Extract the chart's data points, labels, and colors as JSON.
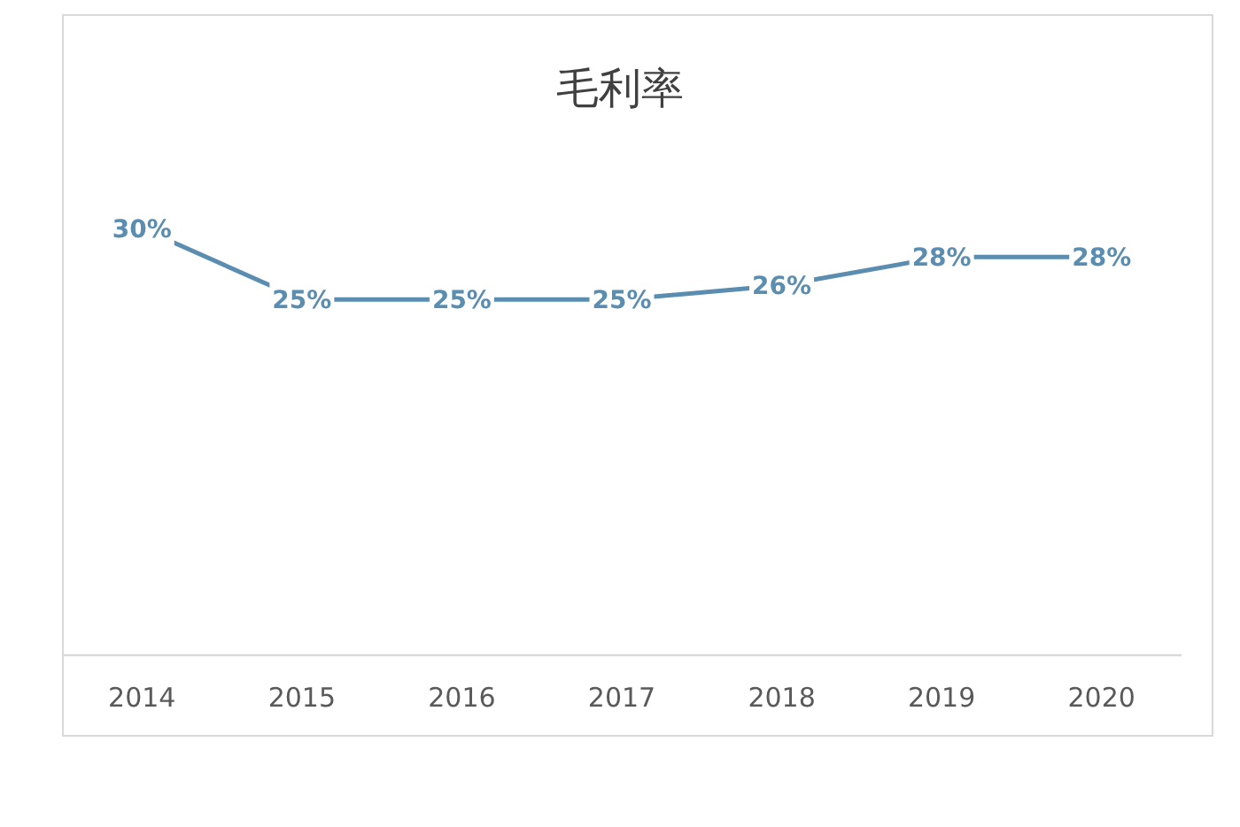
{
  "chart_data": {
    "type": "line",
    "title": "毛利率",
    "categories": [
      "2014",
      "2015",
      "2016",
      "2017",
      "2018",
      "2019",
      "2020"
    ],
    "series": [
      {
        "color": "#5b8db0",
        "values": [
          30,
          25,
          25,
          25,
          26,
          28,
          28
        ],
        "value_labels": [
          "30%",
          "25%",
          "25%",
          "25%",
          "26%",
          "28%",
          "28%"
        ]
      }
    ],
    "tick_labels": "x",
    "line_style": "solid"
  }
}
